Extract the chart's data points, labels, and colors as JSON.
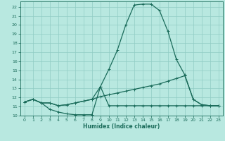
{
  "xlabel": "Humidex (Indice chaleur)",
  "background_color": "#b8e8e0",
  "grid_color": "#90ccc4",
  "line_color": "#1a6b5a",
  "xlim": [
    -0.5,
    23.5
  ],
  "ylim": [
    10,
    22.6
  ],
  "yticks": [
    10,
    11,
    12,
    13,
    14,
    15,
    16,
    17,
    18,
    19,
    20,
    21,
    22
  ],
  "xticks": [
    0,
    1,
    2,
    3,
    4,
    5,
    6,
    7,
    8,
    9,
    10,
    11,
    12,
    13,
    14,
    15,
    16,
    17,
    18,
    19,
    20,
    21,
    22,
    23
  ],
  "curve1_x": [
    0,
    1,
    2,
    3,
    4,
    5,
    6,
    7,
    8,
    9,
    10,
    11,
    12,
    13,
    14,
    15,
    16,
    17,
    18,
    19,
    20,
    21,
    22,
    23
  ],
  "curve1_y": [
    11.5,
    11.8,
    11.4,
    10.7,
    10.4,
    10.2,
    10.1,
    10.1,
    10.1,
    13.2,
    11.1,
    11.1,
    11.1,
    11.1,
    11.1,
    11.1,
    11.1,
    11.1,
    11.1,
    11.1,
    11.1,
    11.1,
    11.1,
    11.1
  ],
  "curve2_x": [
    0,
    1,
    2,
    3,
    4,
    5,
    6,
    7,
    8,
    9,
    10,
    11,
    12,
    13,
    14,
    15,
    16,
    17,
    18,
    19,
    20,
    21,
    22,
    23
  ],
  "curve2_y": [
    11.5,
    11.8,
    11.4,
    11.4,
    11.1,
    11.2,
    11.4,
    11.6,
    11.8,
    12.1,
    12.3,
    12.5,
    12.7,
    12.9,
    13.1,
    13.3,
    13.5,
    13.8,
    14.1,
    14.4,
    11.8,
    11.2,
    11.1,
    11.1
  ],
  "curve3_x": [
    0,
    1,
    2,
    3,
    4,
    5,
    6,
    7,
    8,
    9,
    10,
    11,
    12,
    13,
    14,
    15,
    16,
    17,
    18,
    19,
    20,
    21,
    22,
    23
  ],
  "curve3_y": [
    11.5,
    11.8,
    11.4,
    11.4,
    11.1,
    11.2,
    11.4,
    11.6,
    11.8,
    13.2,
    15.1,
    17.2,
    20.0,
    22.2,
    22.3,
    22.3,
    21.6,
    19.3,
    16.2,
    14.5,
    11.8,
    11.2,
    11.1,
    11.1
  ],
  "marker_size": 2.5,
  "line_width": 0.9
}
